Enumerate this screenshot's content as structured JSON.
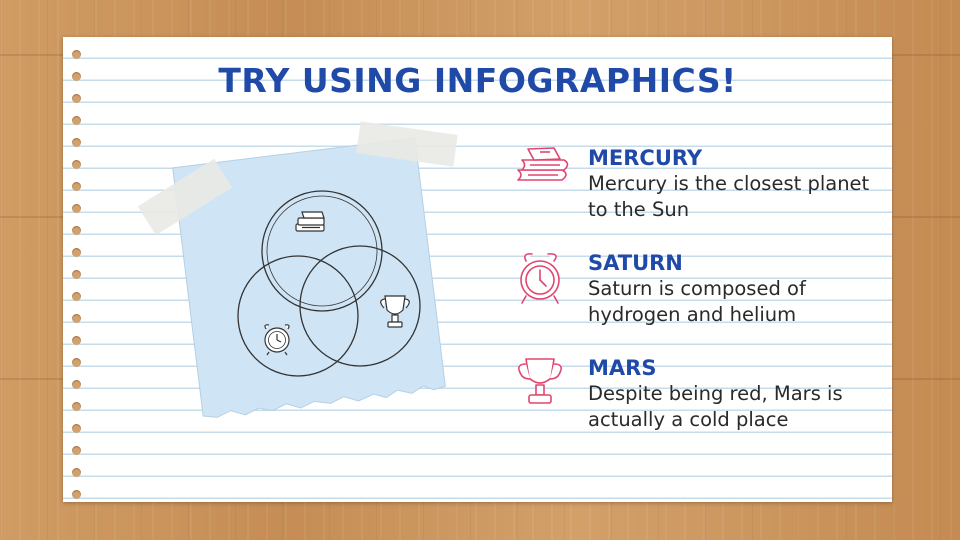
{
  "title": "TRY USING INFOGRAPHICS!",
  "items": [
    {
      "heading": "MERCURY",
      "text": "Mercury is the closest planet to the Sun",
      "icon": "books-icon"
    },
    {
      "heading": "SATURN",
      "text": "Saturn is composed of hydrogen and helium",
      "icon": "alarm-clock-icon"
    },
    {
      "heading": "MARS",
      "text": "Despite being red, Mars is actually a cold place",
      "icon": "trophy-icon"
    }
  ],
  "colors": {
    "title": "#1f4aa8",
    "icon_accent": "#e0466e",
    "sticky_note": "#cfe5f6",
    "tape": "#e9e9e6",
    "wood": "#c9935c"
  },
  "venn_icons": [
    "books-icon",
    "trophy-icon",
    "alarm-clock-icon"
  ]
}
